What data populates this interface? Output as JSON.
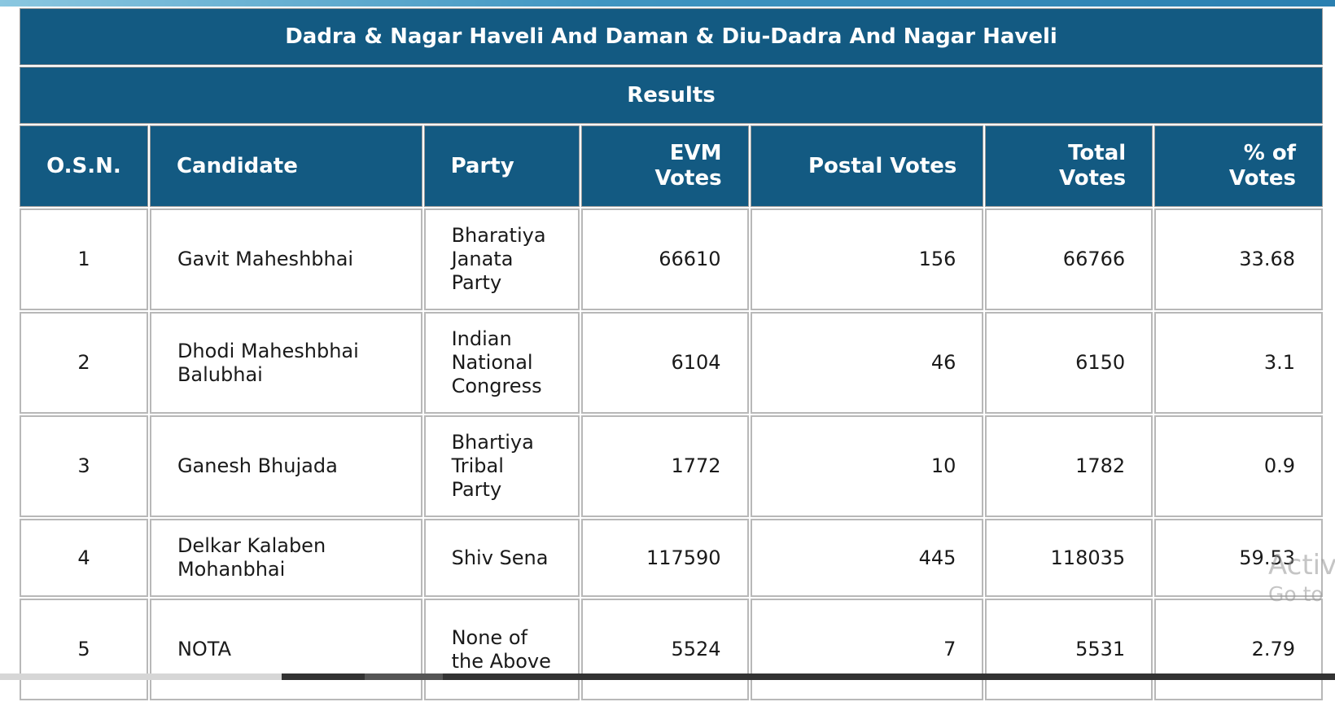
{
  "title": "Dadra & Nagar Haveli And Daman & Diu-Dadra And Nagar Haveli",
  "subtitle": "Results",
  "columns": [
    "O.S.N.",
    "Candidate",
    "Party",
    "EVM Votes",
    "Postal Votes",
    "Total Votes",
    "% of Votes"
  ],
  "rows": [
    {
      "osn": "1",
      "candidate": "Gavit Maheshbhai",
      "party": "Bharatiya Janata Party",
      "evm": "66610",
      "postal": "156",
      "total": "66766",
      "percent": "33.68"
    },
    {
      "osn": "2",
      "candidate": "Dhodi Maheshbhai Balubhai",
      "party": "Indian National Congress",
      "evm": "6104",
      "postal": "46",
      "total": "6150",
      "percent": "3.1"
    },
    {
      "osn": "3",
      "candidate": "Ganesh Bhujada",
      "party": "Bhartiya Tribal Party",
      "evm": "1772",
      "postal": "10",
      "total": "1782",
      "percent": "0.9"
    },
    {
      "osn": "4",
      "candidate": "Delkar Kalaben Mohanbhai",
      "party": "Shiv Sena",
      "evm": "117590",
      "postal": "445",
      "total": "118035",
      "percent": "59.53"
    },
    {
      "osn": "5",
      "candidate": "NOTA",
      "party": "None of the Above",
      "evm": "5524",
      "postal": "7",
      "total": "5531",
      "percent": "2.79"
    }
  ],
  "watermark": {
    "line1": "Activ",
    "line2": "Go to"
  },
  "colors": {
    "header_bg": "#135a82",
    "header_text": "#ffffff",
    "border": "#b8b8b8"
  }
}
